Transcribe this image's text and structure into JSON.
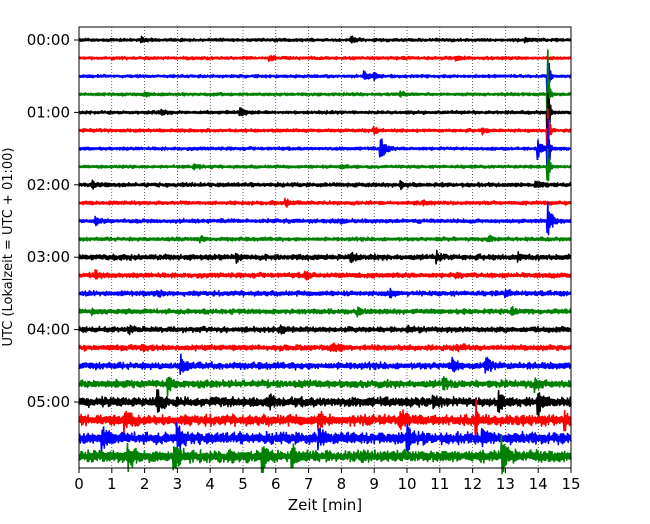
{
  "chart_data": {
    "type": "line",
    "xlabel": "Zeit  [min]",
    "ylabel": "UTC (Lokalzeit = UTC + 01:00)",
    "xlim": [
      0,
      15
    ],
    "x_ticks": [
      0,
      1,
      2,
      3,
      4,
      5,
      6,
      7,
      8,
      9,
      10,
      11,
      12,
      13,
      14,
      15
    ],
    "y_ticks": [
      "00:00",
      "01:00",
      "02:00",
      "03:00",
      "04:00",
      "05:00"
    ],
    "grid": "vertical dotted lines at each minute",
    "trace_interval_minutes": 15,
    "trace_count": 24,
    "trace_colors": [
      "#000000",
      "#ff0000",
      "#0000ff",
      "#008000"
    ],
    "traces": [
      {
        "start": "00:00",
        "color": "#000000",
        "noise": 1.2,
        "events": [
          [
            1.9,
            3.5
          ],
          [
            8.3,
            4
          ],
          [
            13.6,
            3.5
          ]
        ]
      },
      {
        "start": "00:15",
        "color": "#ff0000",
        "noise": 1.2,
        "events": [
          [
            5.8,
            3
          ],
          [
            11.5,
            3
          ]
        ]
      },
      {
        "start": "00:30",
        "color": "#0000ff",
        "noise": 1.2,
        "events": [
          [
            8.7,
            6
          ],
          [
            9.0,
            5
          ],
          [
            14.3,
            40
          ]
        ]
      },
      {
        "start": "00:45",
        "color": "#008000",
        "noise": 1.2,
        "events": [
          [
            2.0,
            3
          ],
          [
            9.8,
            3
          ],
          [
            14.3,
            45
          ]
        ]
      },
      {
        "start": "01:00",
        "color": "#000000",
        "noise": 1.3,
        "events": [
          [
            4.9,
            6
          ],
          [
            2.5,
            3
          ],
          [
            14.3,
            50
          ]
        ]
      },
      {
        "start": "01:15",
        "color": "#ff0000",
        "noise": 1.3,
        "events": [
          [
            9.0,
            4
          ],
          [
            12.3,
            3
          ],
          [
            14.3,
            45
          ]
        ]
      },
      {
        "start": "01:30",
        "color": "#0000ff",
        "noise": 1.3,
        "events": [
          [
            9.2,
            15
          ],
          [
            14.0,
            10
          ],
          [
            14.3,
            40
          ]
        ]
      },
      {
        "start": "01:45",
        "color": "#008000",
        "noise": 1.2,
        "events": [
          [
            3.5,
            3
          ],
          [
            8.0,
            3
          ],
          [
            14.3,
            30
          ]
        ]
      },
      {
        "start": "02:00",
        "color": "#000000",
        "noise": 1.6,
        "events": [
          [
            0.4,
            5
          ],
          [
            9.8,
            4
          ],
          [
            13.9,
            5
          ]
        ]
      },
      {
        "start": "02:15",
        "color": "#ff0000",
        "noise": 1.5,
        "events": [
          [
            6.3,
            4
          ],
          [
            10.5,
            3
          ]
        ]
      },
      {
        "start": "02:30",
        "color": "#0000ff",
        "noise": 1.6,
        "events": [
          [
            0.5,
            4
          ],
          [
            8.0,
            3
          ],
          [
            14.3,
            20
          ]
        ]
      },
      {
        "start": "02:45",
        "color": "#008000",
        "noise": 1.5,
        "events": [
          [
            3.7,
            3
          ],
          [
            12.5,
            3
          ]
        ]
      },
      {
        "start": "03:00",
        "color": "#000000",
        "noise": 2.2,
        "events": [
          [
            4.8,
            5
          ],
          [
            8.3,
            5
          ],
          [
            10.9,
            6
          ],
          [
            13.4,
            4
          ]
        ]
      },
      {
        "start": "03:15",
        "color": "#ff0000",
        "noise": 2.0,
        "events": [
          [
            0.5,
            4
          ],
          [
            6.9,
            5
          ],
          [
            11.5,
            4
          ]
        ]
      },
      {
        "start": "03:30",
        "color": "#0000ff",
        "noise": 2.0,
        "events": [
          [
            2.4,
            4
          ],
          [
            9.5,
            4
          ],
          [
            13.0,
            4
          ]
        ]
      },
      {
        "start": "03:45",
        "color": "#008000",
        "noise": 2.0,
        "events": [
          [
            0.4,
            4
          ],
          [
            8.5,
            4
          ],
          [
            13.2,
            4
          ]
        ]
      },
      {
        "start": "04:00",
        "color": "#000000",
        "noise": 2.2,
        "events": [
          [
            1.5,
            4
          ],
          [
            6.1,
            4
          ],
          [
            10.0,
            5
          ]
        ]
      },
      {
        "start": "04:15",
        "color": "#ff0000",
        "noise": 2.3,
        "events": [
          [
            1.9,
            4
          ],
          [
            7.7,
            5
          ],
          [
            11.5,
            4
          ]
        ]
      },
      {
        "start": "04:30",
        "color": "#0000ff",
        "noise": 2.8,
        "events": [
          [
            3.1,
            9
          ],
          [
            11.4,
            7
          ],
          [
            12.4,
            9
          ]
        ]
      },
      {
        "start": "04:45",
        "color": "#008000",
        "noise": 3.0,
        "events": [
          [
            2.7,
            8
          ],
          [
            11.1,
            9
          ],
          [
            13.9,
            8
          ]
        ]
      },
      {
        "start": "05:00",
        "color": "#000000",
        "noise": 4.0,
        "events": [
          [
            2.4,
            14
          ],
          [
            5.8,
            9
          ],
          [
            10.8,
            9
          ],
          [
            12.8,
            12
          ],
          [
            14.0,
            12
          ]
        ]
      },
      {
        "start": "05:15",
        "color": "#ff0000",
        "noise": 4.5,
        "events": [
          [
            1.4,
            9
          ],
          [
            7.3,
            9
          ],
          [
            9.8,
            14
          ],
          [
            12.1,
            26
          ],
          [
            14.8,
            10
          ]
        ]
      },
      {
        "start": "05:30",
        "color": "#0000ff",
        "noise": 4.8,
        "events": [
          [
            0.7,
            13
          ],
          [
            3.0,
            14
          ],
          [
            7.3,
            12
          ],
          [
            10.0,
            18
          ],
          [
            12.3,
            8
          ]
        ]
      },
      {
        "start": "05:45",
        "color": "#008000",
        "noise": 5.0,
        "events": [
          [
            1.5,
            14
          ],
          [
            2.9,
            16
          ],
          [
            5.6,
            15
          ],
          [
            6.5,
            12
          ],
          [
            12.9,
            19
          ]
        ]
      }
    ]
  }
}
